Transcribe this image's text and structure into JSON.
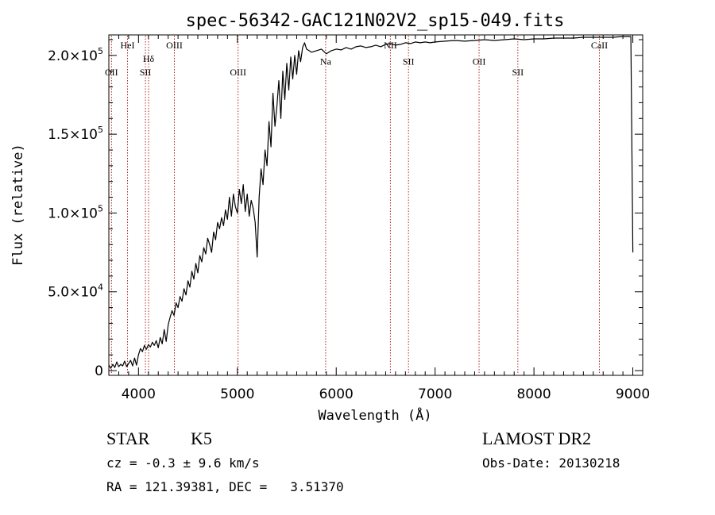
{
  "chart_data": {
    "type": "line",
    "title": "spec-56342-GAC121N02V2_sp15-049.fits",
    "xlabel": "Wavelength (Å)",
    "ylabel": "Flux (relative)",
    "xlim": [
      3700,
      9100
    ],
    "ylim": [
      -3000,
      213000
    ],
    "grid": false,
    "x_ticks": [
      {
        "value": 4000,
        "label": "4000"
      },
      {
        "value": 5000,
        "label": "5000"
      },
      {
        "value": 6000,
        "label": "6000"
      },
      {
        "value": 7000,
        "label": "7000"
      },
      {
        "value": 8000,
        "label": "8000"
      },
      {
        "value": 9000,
        "label": "9000"
      }
    ],
    "y_ticks": [
      {
        "value": 0,
        "mantissa": "0",
        "exponent": ""
      },
      {
        "value": 50000,
        "mantissa": "5.0×10",
        "exponent": "4"
      },
      {
        "value": 100000,
        "mantissa": "1.0×10",
        "exponent": "5"
      },
      {
        "value": 150000,
        "mantissa": "1.5×10",
        "exponent": "5"
      },
      {
        "value": 200000,
        "mantissa": "2.0×10",
        "exponent": "5"
      }
    ],
    "lines": [
      {
        "label": "OII",
        "x": 3727,
        "row": 1
      },
      {
        "label": "HeI",
        "x": 3889,
        "row": 0
      },
      {
        "label": "SII",
        "x": 4070,
        "row": 1
      },
      {
        "label": "Hδ",
        "x": 4102,
        "row": 0.5
      },
      {
        "label": "OIII",
        "x": 4363,
        "row": 0
      },
      {
        "label": "OIII",
        "x": 5007,
        "row": 1
      },
      {
        "label": "Na",
        "x": 5893,
        "row": 0.6
      },
      {
        "label": "NII",
        "x": 6548,
        "row": 0
      },
      {
        "label": "SII",
        "x": 6731,
        "row": 0.6
      },
      {
        "label": "OII",
        "x": 7445,
        "row": 0.6
      },
      {
        "label": "SII",
        "x": 7837,
        "row": 1
      },
      {
        "label": "CaII",
        "x": 8662,
        "row": 0
      }
    ],
    "series": [
      {
        "x": [
          3700,
          3720,
          3740,
          3760,
          3780,
          3800,
          3820,
          3840,
          3860,
          3880,
          3900,
          3920,
          3940,
          3960,
          3980,
          4000,
          4020,
          4040,
          4060,
          4080,
          4100,
          4120,
          4140,
          4160,
          4180,
          4200,
          4220,
          4240,
          4260,
          4280,
          4300,
          4320,
          4340,
          4360,
          4380,
          4400,
          4420,
          4440,
          4460,
          4480,
          4500,
          4520,
          4540,
          4560,
          4580,
          4600,
          4620,
          4640,
          4660,
          4680,
          4700,
          4720,
          4740,
          4760,
          4780,
          4800,
          4820,
          4840,
          4860,
          4880,
          4900,
          4920,
          4940,
          4960,
          4980,
          5000,
          5020,
          5040,
          5060,
          5080,
          5100,
          5120,
          5140,
          5160,
          5180,
          5200,
          5220,
          5240,
          5260,
          5280,
          5300,
          5320,
          5340,
          5360,
          5380,
          5400,
          5420,
          5440,
          5460,
          5480,
          5500,
          5520,
          5540,
          5560,
          5580,
          5600,
          5620,
          5640,
          5660,
          5680,
          5700,
          5750,
          5800,
          5850,
          5900,
          5950,
          6000,
          6050,
          6100,
          6150,
          6200,
          6250,
          6300,
          6350,
          6400,
          6450,
          6500,
          6550,
          6600,
          6650,
          6700,
          6750,
          6800,
          6850,
          6900,
          6950,
          7000,
          7100,
          7200,
          7300,
          7400,
          7500,
          7600,
          7700,
          7800,
          7900,
          8000,
          8100,
          8200,
          8300,
          8400,
          8500,
          8600,
          8700,
          8800,
          8900,
          8980,
          9000
        ],
        "values": [
          3500,
          1500,
          4000,
          2000,
          5500,
          2500,
          4000,
          3000,
          6000,
          2500,
          4500,
          6500,
          3000,
          8000,
          3500,
          10000,
          14000,
          12000,
          16000,
          13500,
          16500,
          15000,
          18000,
          16000,
          19000,
          14500,
          21000,
          17000,
          26000,
          18500,
          29000,
          34000,
          38000,
          35000,
          43000,
          40000,
          47000,
          44000,
          52000,
          48000,
          57000,
          53000,
          63000,
          58000,
          68000,
          62000,
          73000,
          69000,
          78000,
          74000,
          84000,
          80000,
          75000,
          88000,
          83000,
          94000,
          90000,
          97000,
          92000,
          102000,
          96000,
          110000,
          98000,
          112000,
          104000,
          100000,
          115000,
          106000,
          118000,
          101000,
          112000,
          98000,
          108000,
          103000,
          94000,
          72000,
          110000,
          128000,
          118000,
          140000,
          130000,
          158000,
          142000,
          176000,
          155000,
          168000,
          184000,
          160000,
          190000,
          172000,
          195000,
          178000,
          199000,
          185000,
          200000,
          188000,
          203000,
          196000,
          205000,
          208000,
          204000,
          202000,
          203000,
          204000,
          201000,
          203000,
          204000,
          203500,
          205000,
          204000,
          205500,
          206000,
          205000,
          205500,
          206500,
          205500,
          207000,
          207500,
          206500,
          207000,
          208000,
          207500,
          208500,
          208000,
          208500,
          208000,
          208500,
          209000,
          209500,
          209000,
          209500,
          210000,
          209500,
          210000,
          210500,
          210000,
          210500,
          210500,
          211000,
          211000,
          211000,
          211500,
          211500,
          211500,
          211500,
          212000,
          212000,
          75000
        ]
      }
    ]
  },
  "info": {
    "object_class": "STAR",
    "subclass": "K5",
    "survey": "LAMOST DR2",
    "redshift": "cz = -0.3 ± 9.6 km/s",
    "obs_date": "Obs-Date: 20130218",
    "coords": "RA = 121.39381, DEC =   3.51370"
  }
}
